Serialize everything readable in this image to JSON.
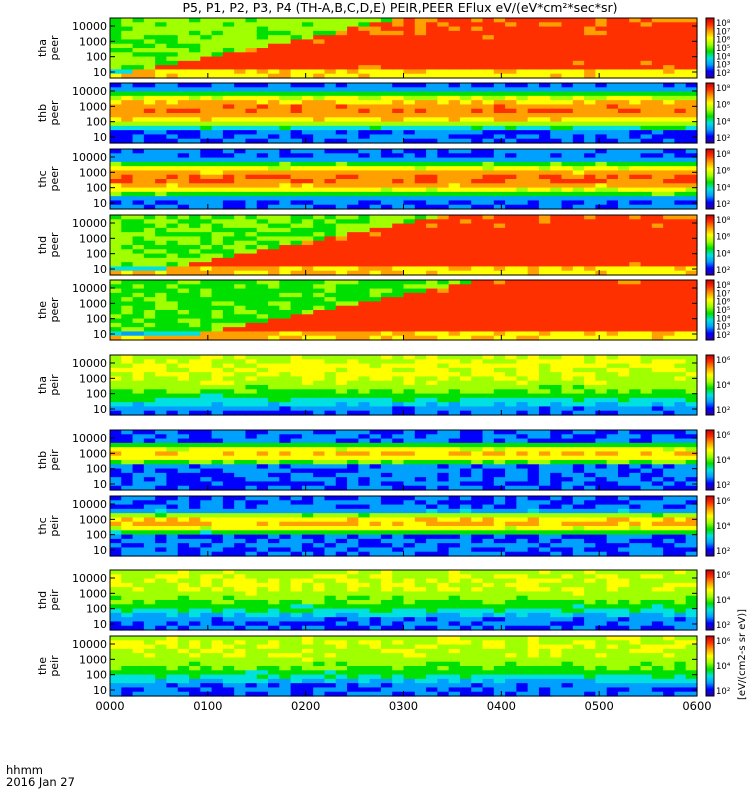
{
  "title": "P5, P1, P2, P3, P4 (TH-A,B,C,D,E) PEIR,PEER EFlux eV/(eV*cm²*sec*sr)",
  "colorbar_label": "[eV/(cm2-s sr eV)]",
  "time_axis": {
    "label_line1": "hhmm",
    "label_line2": "2016 Jan 27",
    "ticks": [
      "0000",
      "0100",
      "0200",
      "0300",
      "0400",
      "0500",
      "0600"
    ]
  },
  "chart_data": {
    "type": "heatmap",
    "x_range_hours": [
      0,
      6
    ],
    "y_scale": "log",
    "y_ticks": [
      "10",
      "100",
      "1000",
      "10000"
    ],
    "panels": [
      {
        "ylabel1": "tha",
        "ylabel2": "peer",
        "cbar_ticks": [
          "10²",
          "10³",
          "10⁴",
          "10⁵",
          "10⁶",
          "10⁷",
          "10⁸"
        ],
        "base": 0.62,
        "rise_start": 0.02,
        "rise_end": 0.55,
        "level": 0.86
      },
      {
        "ylabel1": "thb",
        "ylabel2": "peer",
        "cbar_ticks": [
          "10²",
          "10⁴",
          "10⁶",
          "10⁸"
        ],
        "band_center": 0.55,
        "band_width": 0.35,
        "band_level": 0.88
      },
      {
        "ylabel1": "thc",
        "ylabel2": "peer",
        "cbar_ticks": [
          "10²",
          "10⁴",
          "10⁶",
          "10⁸"
        ],
        "band_center": 0.5,
        "band_width": 0.32,
        "band_level": 0.9
      },
      {
        "ylabel1": "thd",
        "ylabel2": "peer",
        "cbar_ticks": [
          "10²",
          "10⁴",
          "10⁶",
          "10⁸"
        ],
        "base": 0.6,
        "rise_start": 0.09,
        "rise_end": 0.62,
        "level": 0.87
      },
      {
        "ylabel1": "the",
        "ylabel2": "peer",
        "cbar_ticks": [
          "10²",
          "10³",
          "10⁴",
          "10⁵",
          "10⁶",
          "10⁷",
          "10⁸"
        ],
        "base": 0.58,
        "rise_start": 0.14,
        "rise_end": 0.68,
        "level": 0.88
      },
      {
        "ylabel1": "tha",
        "ylabel2": "peir",
        "cbar_ticks": [
          "10²",
          "10⁴",
          "10⁶"
        ],
        "band_center": 0.78,
        "band_width": 0.8,
        "band_level": 0.72
      },
      {
        "ylabel1": "thb",
        "ylabel2": "peir",
        "cbar_ticks": [
          "10²",
          "10⁴",
          "10⁶"
        ],
        "band_center": 0.6,
        "band_width": 0.22,
        "band_level": 0.8
      },
      {
        "ylabel1": "thc",
        "ylabel2": "peir",
        "cbar_ticks": [
          "10²",
          "10⁴",
          "10⁶"
        ],
        "band_center": 0.55,
        "band_width": 0.22,
        "band_level": 0.82
      },
      {
        "ylabel1": "thd",
        "ylabel2": "peir",
        "cbar_ticks": [
          "10²",
          "10⁴",
          "10⁶"
        ],
        "band_center": 0.8,
        "band_width": 0.75,
        "band_level": 0.7
      },
      {
        "ylabel1": "the",
        "ylabel2": "peir",
        "cbar_ticks": [
          "10²",
          "10⁴",
          "10⁶"
        ],
        "band_center": 0.8,
        "band_width": 0.75,
        "band_level": 0.7
      }
    ],
    "colormap": [
      "#ffffff",
      "#2a00a0",
      "#0000ff",
      "#00a0ff",
      "#00e0e0",
      "#00e000",
      "#a0ff00",
      "#ffff00",
      "#ffa000",
      "#ff3000",
      "#c80000"
    ]
  }
}
